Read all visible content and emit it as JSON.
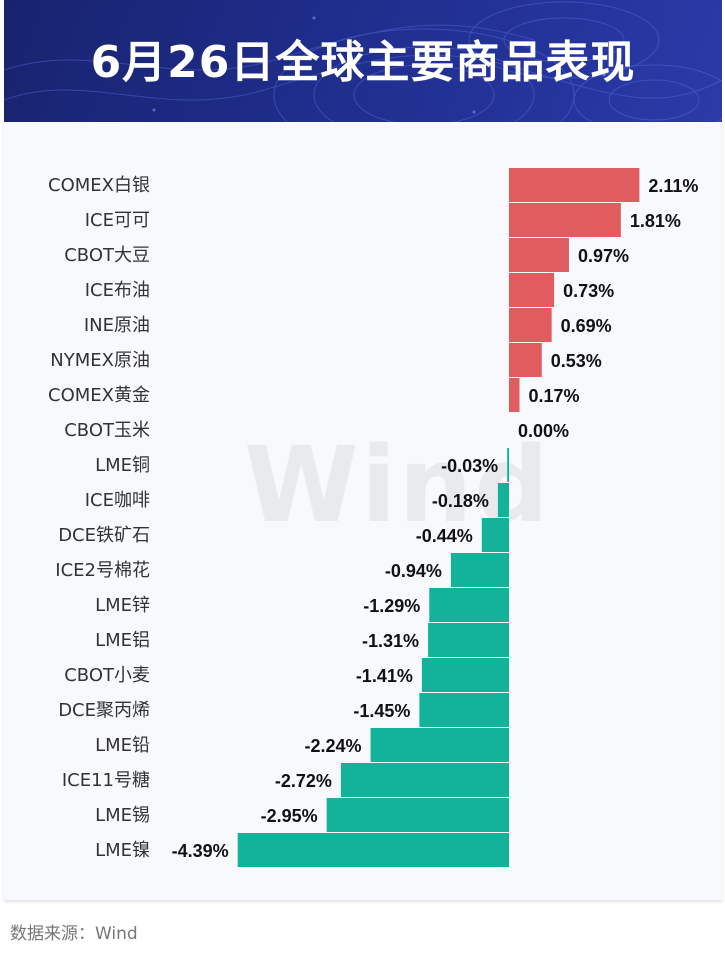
{
  "header": {
    "title": "6月26日全球主要商品表现"
  },
  "watermark": "Wind",
  "footer": {
    "source": "数据来源：Wind"
  },
  "colors": {
    "positive": "#e05c5f",
    "negative": "#13b39b",
    "header_bg": "#1f2d8c"
  },
  "chart_data": {
    "type": "bar",
    "orientation": "horizontal",
    "title": "6月26日全球主要商品表现",
    "unit": "%",
    "categories": [
      "COMEX白银",
      "ICE可可",
      "CBOT大豆",
      "ICE布油",
      "INE原油",
      "NYMEX原油",
      "COMEX黄金",
      "CBOT玉米",
      "LME铜",
      "ICE咖啡",
      "DCE铁矿石",
      "ICE2号棉花",
      "LME锌",
      "LME铝",
      "CBOT小麦",
      "DCE聚丙烯",
      "LME铅",
      "ICE11号糖",
      "LME锡",
      "LME镍"
    ],
    "values": [
      2.11,
      1.81,
      0.97,
      0.73,
      0.69,
      0.53,
      0.17,
      0.0,
      -0.03,
      -0.18,
      -0.44,
      -0.94,
      -1.29,
      -1.31,
      -1.41,
      -1.45,
      -2.24,
      -2.72,
      -2.95,
      -4.39
    ],
    "labels": [
      "2.11%",
      "1.81%",
      "0.97%",
      "0.73%",
      "0.69%",
      "0.53%",
      "0.17%",
      "0.00%",
      "-0.03%",
      "-0.18%",
      "-0.44%",
      "-0.94%",
      "-1.29%",
      "-1.31%",
      "-1.41%",
      "-1.45%",
      "-2.24%",
      "-2.72%",
      "-2.95%",
      "-4.39%"
    ]
  }
}
